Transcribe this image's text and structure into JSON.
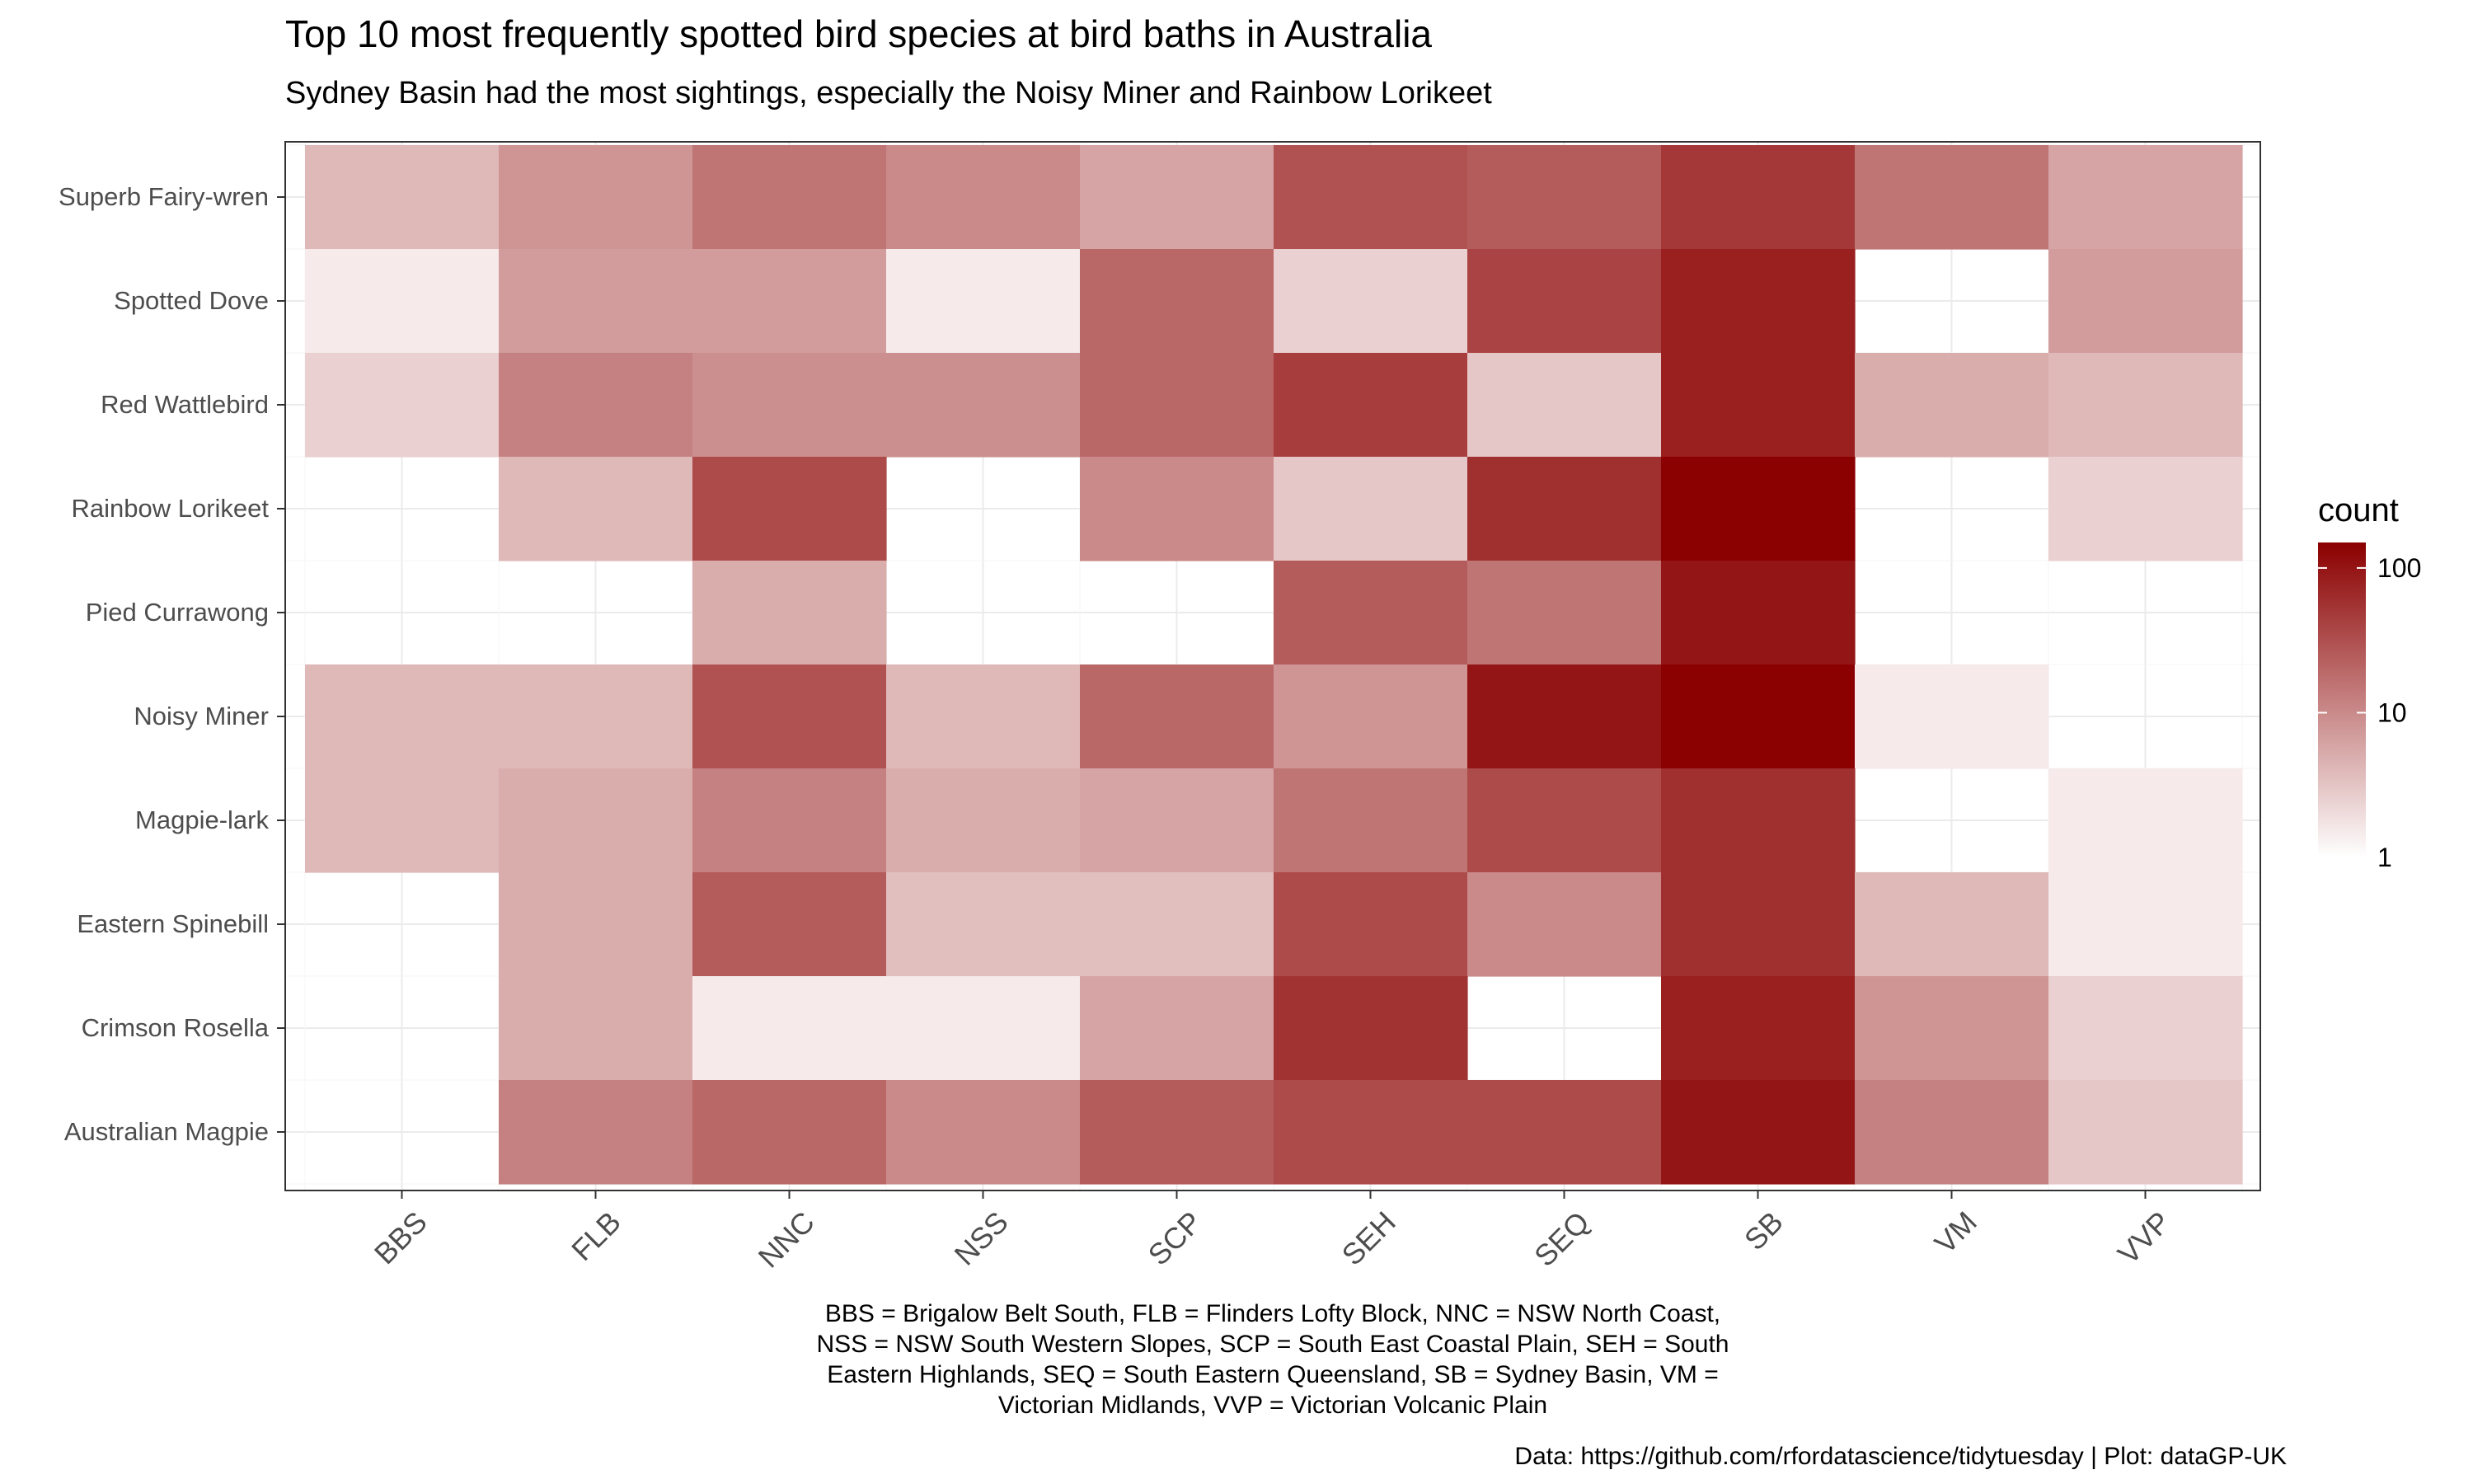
{
  "chart_data": {
    "type": "heatmap",
    "title": "Top 10 most frequently spotted bird species at bird baths in Australia",
    "subtitle": "Sydney Basin had the most sightings, especially the Noisy Miner and Rainbow Lorikeet",
    "x": [
      "BBS",
      "FLB",
      "NNC",
      "NSS",
      "SCP",
      "SEH",
      "SEQ",
      "SB",
      "VM",
      "VVP"
    ],
    "y": [
      "Superb Fairy-wren",
      "Spotted Dove",
      "Red Wattlebird",
      "Rainbow Lorikeet",
      "Pied Currawong",
      "Noisy Miner",
      "Magpie-lark",
      "Eastern Spinebill",
      "Crimson Rosella",
      "Australian Magpie"
    ],
    "values": [
      [
        4,
        8,
        15,
        10,
        6,
        30,
        25,
        50,
        15,
        6
      ],
      [
        1.5,
        7,
        7,
        1.5,
        20,
        2.5,
        40,
        80,
        null,
        7
      ],
      [
        2.5,
        12,
        9,
        9,
        20,
        45,
        3,
        80,
        5,
        4
      ],
      [
        null,
        4,
        35,
        null,
        10,
        3,
        60,
        150,
        null,
        2.5
      ],
      [
        null,
        null,
        5,
        null,
        null,
        25,
        15,
        100,
        null,
        null
      ],
      [
        4,
        4,
        30,
        4,
        20,
        8,
        100,
        150,
        1.5,
        null
      ],
      [
        4,
        5,
        12,
        5,
        6,
        15,
        35,
        60,
        null,
        1.5
      ],
      [
        null,
        5,
        25,
        3.5,
        3.5,
        35,
        10,
        60,
        4,
        1.5
      ],
      [
        null,
        5,
        1.5,
        1.5,
        6,
        55,
        null,
        80,
        8,
        2.5
      ],
      [
        null,
        12,
        20,
        10,
        25,
        35,
        35,
        100,
        12,
        3
      ]
    ],
    "legend": {
      "title": "count",
      "ticks": [
        "100",
        "10",
        "1"
      ],
      "scale": "log10",
      "range": [
        1,
        150
      ],
      "low_color": "#ffffff",
      "high_color": "#8b0000",
      "position": "right"
    },
    "grid": true,
    "caption_lines": [
      "BBS = Brigalow Belt South, FLB = Flinders Lofty Block, NNC = NSW North Coast,",
      "NSS = NSW South Western Slopes, SCP = South East Coastal Plain, SEH = South",
      "Eastern Highlands, SEQ = South Eastern Queensland, SB = Sydney Basin, VM =",
      "Victorian Midlands, VVP = Victorian Volcanic Plain"
    ],
    "source": "Data: https://github.com/rfordatascience/tidytuesday | Plot: dataGP-UK"
  }
}
